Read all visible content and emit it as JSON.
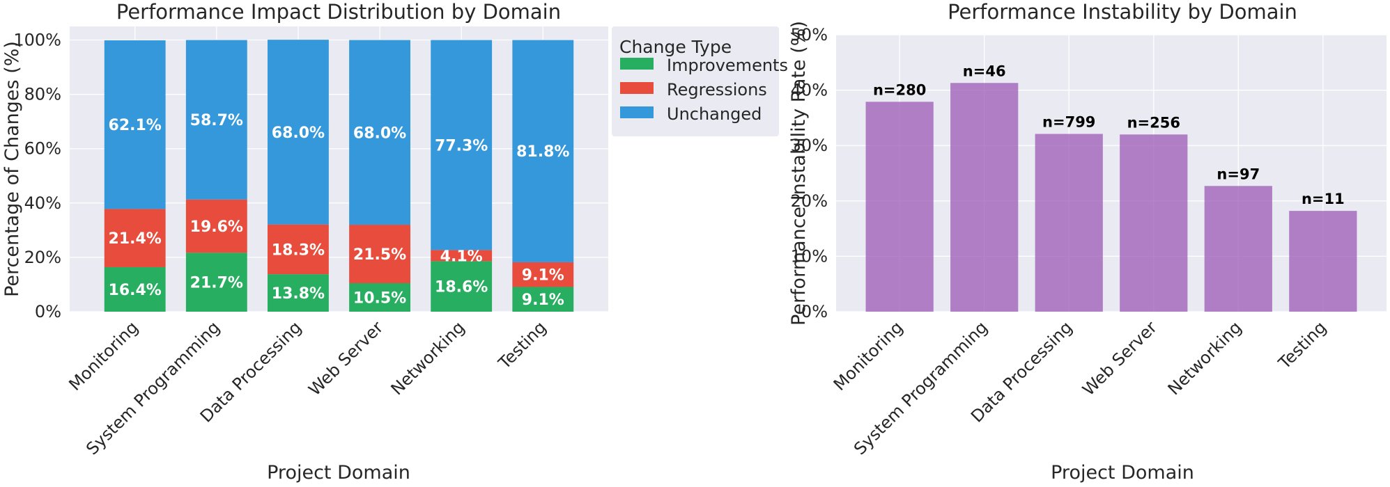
{
  "chart_data": [
    {
      "type": "bar",
      "stacked": true,
      "title": "Performance Impact Distribution by Domain",
      "xlabel": "Project Domain",
      "ylabel": "Percentage of Changes (%)",
      "ylim": [
        0,
        105
      ],
      "yticks": [
        "0%",
        "20%",
        "40%",
        "60%",
        "80%",
        "100%"
      ],
      "grid": true,
      "categories": [
        "Monitoring",
        "System Programming",
        "Data Processing",
        "Web Server",
        "Networking",
        "Testing"
      ],
      "series": [
        {
          "name": "Improvements",
          "color": "#27ae60",
          "values": [
            16.4,
            21.7,
            13.8,
            10.5,
            18.6,
            9.1
          ],
          "labels": [
            "16.4%",
            "21.7%",
            "13.8%",
            "10.5%",
            "18.6%",
            "9.1%"
          ]
        },
        {
          "name": "Regressions",
          "color": "#e74c3c",
          "values": [
            21.4,
            19.6,
            18.3,
            21.5,
            4.1,
            9.1
          ],
          "labels": [
            "21.4%",
            "19.6%",
            "18.3%",
            "21.5%",
            "4.1%",
            "9.1%"
          ]
        },
        {
          "name": "Unchanged",
          "color": "#3498db",
          "values": [
            62.1,
            58.7,
            68.0,
            68.0,
            77.3,
            81.8
          ],
          "labels": [
            "62.1%",
            "58.7%",
            "68.0%",
            "68.0%",
            "77.3%",
            "81.8%"
          ]
        }
      ],
      "legend": {
        "title": "Change Type",
        "placement": "outside-top-right"
      }
    },
    {
      "type": "bar",
      "title": "Performance Instability by Domain",
      "xlabel": "Project Domain",
      "ylabel": "Performance Instability Rate (%)",
      "ylim": [
        0,
        50
      ],
      "yticks": [
        "0%",
        "10%",
        "20%",
        "30%",
        "40%",
        "50%"
      ],
      "grid": true,
      "categories": [
        "Monitoring",
        "System Programming",
        "Data Processing",
        "Web Server",
        "Networking",
        "Testing"
      ],
      "color": "#9b59b6",
      "values": [
        37.9,
        41.3,
        32.1,
        32.0,
        22.7,
        18.2
      ],
      "bar_labels": [
        "n=280",
        "n=46",
        "n=799",
        "n=256",
        "n=97",
        "n=11"
      ]
    }
  ]
}
